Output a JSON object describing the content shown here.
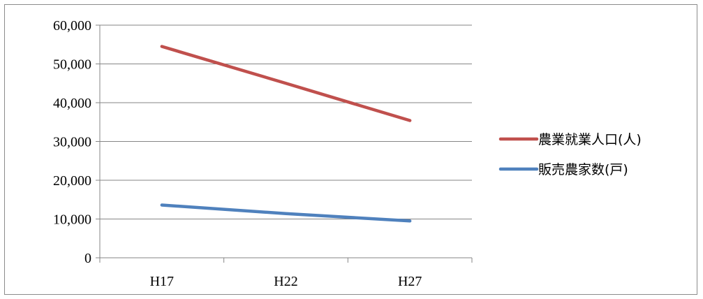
{
  "chart_data": {
    "type": "line",
    "title": "",
    "xlabel": "",
    "ylabel": "",
    "categories": [
      "H17",
      "H22",
      "H27"
    ],
    "ylim": [
      0,
      60000
    ],
    "yticks": [
      0,
      10000,
      20000,
      30000,
      40000,
      50000,
      60000
    ],
    "ytick_labels": [
      "0",
      "10,000",
      "20,000",
      "30,000",
      "40,000",
      "50,000",
      "60,000"
    ],
    "grid": "horizontal major gridlines on",
    "legend_position": "right",
    "series": [
      {
        "name": "農業就業人口(人)",
        "color": "#c0504d",
        "values": [
          54500,
          45000,
          35400
        ]
      },
      {
        "name": "販売農家数(戸)",
        "color": "#4f81bd",
        "values": [
          13600,
          11400,
          9500
        ]
      }
    ]
  }
}
